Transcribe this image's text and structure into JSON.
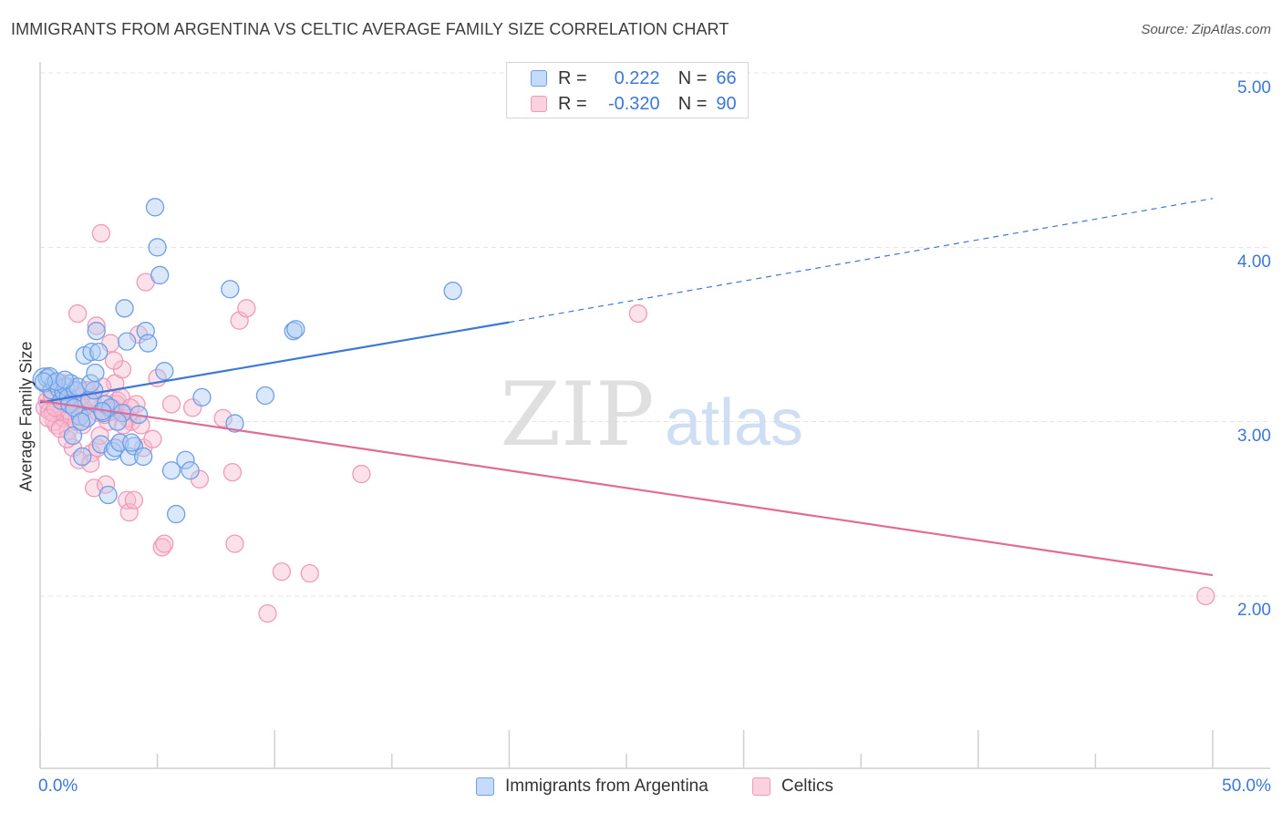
{
  "title": "IMMIGRANTS FROM ARGENTINA VS CELTIC AVERAGE FAMILY SIZE CORRELATION CHART",
  "source": "Source: ZipAtlas.com",
  "watermark": {
    "zip": "ZIP",
    "atlas": "atlas"
  },
  "legend": {
    "r_label": "R =",
    "n_label": "N =",
    "rows": [
      {
        "r": "0.222",
        "n": "66"
      },
      {
        "r": "-0.320",
        "n": "90"
      }
    ]
  },
  "colors": {
    "blue": "#3b78d8",
    "blue_fill": "#aecbf5",
    "blue_stroke": "#6e9ee8",
    "pink": "#e06b96",
    "pink_fill": "#f6bcd0",
    "pink_stroke": "#ef9ab9",
    "grid": "#e3e3e3"
  },
  "chart_data": {
    "type": "scatter",
    "title": "IMMIGRANTS FROM ARGENTINA VS CELTIC AVERAGE FAMILY SIZE CORRELATION CHART",
    "xlabel": "",
    "ylabel": "Average Family Size",
    "xlim": [
      0,
      50
    ],
    "ylim": [
      1.0,
      5.1
    ],
    "x_tick_labels": [
      "0.0%",
      "50.0%"
    ],
    "y_ticks": [
      2.0,
      3.0,
      4.0,
      5.0
    ],
    "y_tick_labels": [
      "2.00",
      "3.00",
      "4.00",
      "5.00"
    ],
    "grid": true,
    "legend_position": "top-center",
    "series": [
      {
        "name": "Immigrants from Argentina",
        "color": "#3b78d8",
        "R": 0.222,
        "N": 66,
        "trend": {
          "x0": 0,
          "y0": 3.11,
          "x1": 20,
          "y1": 3.57,
          "dashed_to_x": 50,
          "dashed_to_y": 4.28
        },
        "points": [
          [
            0.2,
            3.24
          ],
          [
            0.3,
            3.25
          ],
          [
            0.5,
            3.18
          ],
          [
            0.6,
            3.22
          ],
          [
            0.8,
            3.19
          ],
          [
            0.9,
            3.12
          ],
          [
            1.0,
            3.17
          ],
          [
            1.1,
            3.2
          ],
          [
            1.2,
            3.14
          ],
          [
            1.3,
            3.22
          ],
          [
            1.4,
            2.92
          ],
          [
            1.5,
            3.18
          ],
          [
            1.6,
            3.2
          ],
          [
            1.7,
            3.03
          ],
          [
            1.8,
            2.8
          ],
          [
            1.9,
            3.38
          ],
          [
            2.0,
            3.02
          ],
          [
            2.1,
            3.12
          ],
          [
            2.2,
            3.4
          ],
          [
            2.3,
            3.18
          ],
          [
            2.4,
            3.52
          ],
          [
            2.5,
            3.4
          ],
          [
            2.6,
            2.87
          ],
          [
            2.7,
            3.05
          ],
          [
            2.8,
            3.1
          ],
          [
            2.9,
            2.58
          ],
          [
            3.0,
            3.08
          ],
          [
            3.1,
            2.83
          ],
          [
            3.2,
            2.85
          ],
          [
            3.4,
            2.88
          ],
          [
            3.5,
            3.05
          ],
          [
            3.6,
            3.65
          ],
          [
            3.7,
            3.46
          ],
          [
            3.8,
            2.8
          ],
          [
            4.0,
            2.86
          ],
          [
            4.2,
            3.04
          ],
          [
            4.4,
            2.8
          ],
          [
            4.5,
            3.52
          ],
          [
            4.6,
            3.45
          ],
          [
            4.9,
            4.23
          ],
          [
            5.0,
            4.0
          ],
          [
            5.1,
            3.84
          ],
          [
            5.3,
            3.29
          ],
          [
            5.6,
            2.72
          ],
          [
            5.8,
            2.47
          ],
          [
            6.2,
            2.78
          ],
          [
            6.4,
            2.72
          ],
          [
            6.9,
            3.14
          ],
          [
            8.1,
            3.76
          ],
          [
            8.3,
            2.99
          ],
          [
            9.6,
            3.15
          ],
          [
            10.8,
            3.52
          ],
          [
            10.9,
            3.53
          ],
          [
            17.6,
            3.75
          ],
          [
            0.4,
            3.26
          ],
          [
            1.25,
            3.1
          ],
          [
            2.15,
            3.22
          ],
          [
            3.3,
            3.0
          ],
          [
            0.7,
            3.23
          ],
          [
            1.45,
            3.08
          ],
          [
            2.35,
            3.28
          ],
          [
            1.05,
            3.24
          ],
          [
            0.15,
            3.23
          ],
          [
            2.65,
            3.06
          ],
          [
            3.9,
            2.88
          ],
          [
            1.75,
            3.0
          ]
        ]
      },
      {
        "name": "Celtics",
        "color": "#e06b96",
        "R": -0.32,
        "N": 90,
        "trend": {
          "x0": 0,
          "y0": 3.12,
          "x1": 50,
          "y1": 2.12
        },
        "points": [
          [
            0.2,
            3.08
          ],
          [
            0.3,
            3.12
          ],
          [
            0.4,
            3.06
          ],
          [
            0.5,
            3.15
          ],
          [
            0.6,
            3.0
          ],
          [
            0.7,
            2.98
          ],
          [
            0.8,
            3.1
          ],
          [
            0.9,
            3.05
          ],
          [
            1.0,
            3.02
          ],
          [
            1.1,
            3.12
          ],
          [
            1.2,
            2.95
          ],
          [
            1.3,
            3.2
          ],
          [
            1.4,
            2.85
          ],
          [
            1.5,
            3.08
          ],
          [
            1.6,
            3.62
          ],
          [
            1.7,
            3.05
          ],
          [
            1.8,
            2.98
          ],
          [
            1.9,
            3.18
          ],
          [
            2.0,
            3.02
          ],
          [
            2.1,
            3.1
          ],
          [
            2.2,
            2.82
          ],
          [
            2.3,
            2.62
          ],
          [
            2.4,
            3.55
          ],
          [
            2.5,
            3.05
          ],
          [
            2.6,
            4.08
          ],
          [
            2.7,
            3.1
          ],
          [
            2.8,
            2.64
          ],
          [
            2.9,
            3.0
          ],
          [
            3.0,
            3.45
          ],
          [
            3.1,
            3.08
          ],
          [
            3.2,
            3.22
          ],
          [
            3.3,
            3.12
          ],
          [
            3.4,
            2.88
          ],
          [
            3.5,
            3.3
          ],
          [
            3.6,
            3.05
          ],
          [
            3.7,
            2.55
          ],
          [
            3.8,
            2.48
          ],
          [
            3.9,
            3.0
          ],
          [
            4.0,
            2.55
          ],
          [
            4.2,
            3.5
          ],
          [
            4.4,
            2.85
          ],
          [
            4.5,
            3.8
          ],
          [
            4.8,
            2.9
          ],
          [
            5.0,
            3.25
          ],
          [
            5.2,
            2.28
          ],
          [
            5.3,
            2.3
          ],
          [
            5.6,
            3.1
          ],
          [
            6.5,
            3.08
          ],
          [
            6.8,
            2.67
          ],
          [
            7.8,
            3.02
          ],
          [
            8.2,
            2.71
          ],
          [
            8.3,
            2.3
          ],
          [
            8.5,
            3.58
          ],
          [
            8.8,
            3.65
          ],
          [
            10.3,
            2.14
          ],
          [
            11.5,
            2.13
          ],
          [
            9.7,
            1.9
          ],
          [
            13.7,
            2.7
          ],
          [
            25.5,
            3.62
          ],
          [
            49.7,
            2.0
          ],
          [
            0.45,
            3.18
          ],
          [
            0.95,
            3.22
          ],
          [
            1.35,
            3.02
          ],
          [
            1.85,
            3.08
          ],
          [
            2.25,
            3.14
          ],
          [
            2.75,
            3.04
          ],
          [
            3.25,
            3.1
          ],
          [
            3.75,
            3.02
          ],
          [
            1.15,
            2.9
          ],
          [
            1.65,
            2.78
          ],
          [
            2.45,
            2.85
          ],
          [
            3.15,
            3.35
          ],
          [
            0.55,
            3.05
          ],
          [
            1.05,
            3.12
          ],
          [
            1.55,
            3.0
          ],
          [
            2.05,
            3.18
          ],
          [
            2.55,
            2.92
          ],
          [
            3.05,
            3.06
          ],
          [
            3.55,
            2.98
          ],
          [
            4.1,
            3.1
          ],
          [
            0.35,
            3.02
          ],
          [
            0.85,
            2.96
          ],
          [
            1.25,
            3.06
          ],
          [
            1.75,
            3.14
          ],
          [
            2.15,
            2.76
          ],
          [
            2.65,
            3.2
          ],
          [
            3.45,
            3.14
          ],
          [
            4.3,
            2.98
          ],
          [
            0.65,
            3.08
          ],
          [
            3.85,
            3.08
          ]
        ]
      }
    ]
  },
  "bottom_legend": [
    "Immigrants from Argentina",
    "Celtics"
  ]
}
